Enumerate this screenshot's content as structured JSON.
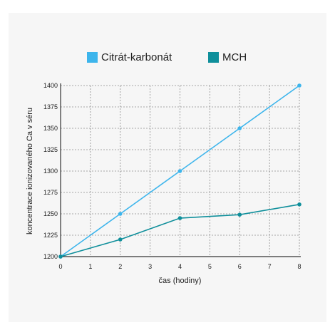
{
  "chart_data": {
    "type": "line",
    "title": "",
    "xlabel": "čas (hodiny)",
    "ylabel": "koncentrace ionizovaného Ca v séru",
    "xlim": [
      0,
      8
    ],
    "ylim": [
      1200,
      1400
    ],
    "x_ticks": [
      0,
      1,
      2,
      3,
      4,
      5,
      6,
      7,
      8
    ],
    "y_ticks": [
      1200,
      1225,
      1250,
      1275,
      1300,
      1325,
      1350,
      1375,
      1400
    ],
    "grid": true,
    "legend_position": "top",
    "series": [
      {
        "name": "Citrát-karbonát",
        "color": "#3db5ec",
        "x": [
          0,
          2,
          4,
          6,
          8
        ],
        "y": [
          1200,
          1250,
          1300,
          1350,
          1400
        ]
      },
      {
        "name": "MCH",
        "color": "#0f8f9b",
        "x": [
          0,
          2,
          4,
          6,
          8
        ],
        "y": [
          1200,
          1220,
          1245,
          1249,
          1261
        ]
      }
    ]
  }
}
